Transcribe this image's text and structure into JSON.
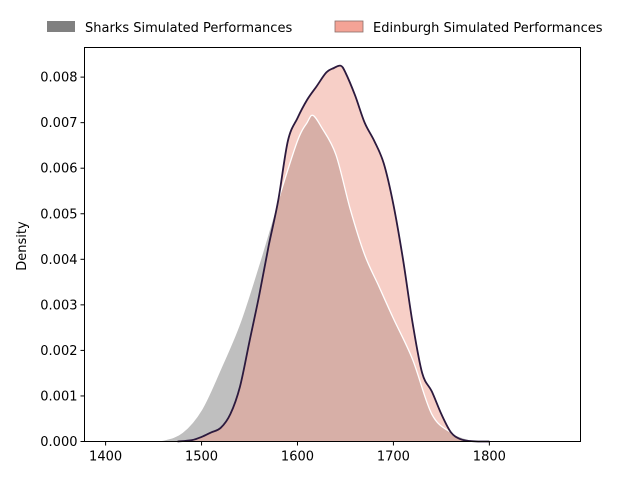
{
  "chart_data": {
    "type": "area",
    "title": "",
    "xlabel": "",
    "ylabel": "Density",
    "xlim": [
      1378,
      1895
    ],
    "ylim": [
      0,
      0.00865
    ],
    "x_ticks": [
      1400,
      1500,
      1600,
      1700,
      1800
    ],
    "y_ticks": [
      0.0,
      0.001,
      0.002,
      0.003,
      0.004,
      0.005,
      0.006,
      0.007,
      0.008
    ],
    "y_tick_labels": [
      "0.000",
      "0.001",
      "0.002",
      "0.003",
      "0.004",
      "0.005",
      "0.006",
      "0.007",
      "0.008"
    ],
    "legend_position": "top",
    "grid": false,
    "series": [
      {
        "name": "Sharks Simulated Performances",
        "fill_color": "#808080",
        "fill_opacity": 0.5,
        "line_color": "#ffffff",
        "legend_color": "#808080",
        "x": [
          1440,
          1460,
          1480,
          1500,
          1520,
          1540,
          1560,
          1580,
          1600,
          1610,
          1616,
          1625,
          1640,
          1655,
          1670,
          1685,
          1700,
          1720,
          1740,
          1760,
          1780,
          1800,
          1820,
          1835
        ],
        "y": [
          0.0,
          3e-05,
          0.0002,
          0.0007,
          0.0016,
          0.0026,
          0.0039,
          0.0053,
          0.0066,
          0.007,
          0.00716,
          0.0069,
          0.0063,
          0.0051,
          0.0041,
          0.0034,
          0.0027,
          0.0018,
          0.0006,
          0.0002,
          4e-05,
          2e-05,
          1e-05,
          0.0
        ]
      },
      {
        "name": "Edinburgh Simulated Performances",
        "fill_color": "#f0a090",
        "fill_opacity": 0.5,
        "line_color": "#2c1a3e",
        "legend_color": "#f4a396",
        "x": [
          1475,
          1490,
          1500,
          1510,
          1520,
          1530,
          1540,
          1550,
          1560,
          1570,
          1580,
          1590,
          1600,
          1610,
          1620,
          1630,
          1638,
          1645,
          1650,
          1660,
          1670,
          1680,
          1690,
          1700,
          1710,
          1720,
          1730,
          1740,
          1750,
          1760,
          1770,
          1780,
          1790,
          1800
        ],
        "y": [
          0.0,
          3e-05,
          0.0001,
          0.0002,
          0.0003,
          0.0006,
          0.0012,
          0.0022,
          0.0032,
          0.0043,
          0.0053,
          0.0066,
          0.0071,
          0.0075,
          0.0078,
          0.0081,
          0.0082,
          0.00825,
          0.0081,
          0.0076,
          0.007,
          0.0066,
          0.0061,
          0.0052,
          0.004,
          0.0026,
          0.0015,
          0.0011,
          0.0006,
          0.0002,
          5e-05,
          1e-05,
          0.0,
          0.0
        ]
      }
    ]
  }
}
